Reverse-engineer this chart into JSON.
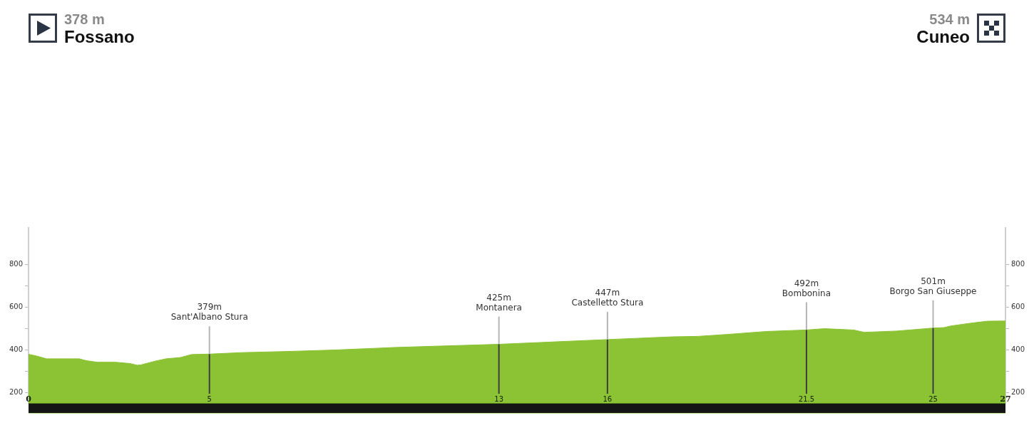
{
  "chart_data": {
    "type": "area",
    "annotations": [
      "378 m",
      "Fossano",
      "534 m",
      "Cuneo"
    ],
    "x": [
      0,
      0.2,
      0.5,
      1.4,
      1.6,
      1.9,
      2.4,
      2.8,
      3.0,
      3.1,
      3.5,
      3.8,
      4.2,
      4.5,
      4.7,
      5,
      5.9,
      7.3,
      8.6,
      10.1,
      13,
      16,
      17.8,
      18.5,
      19.3,
      20.4,
      21.5,
      22,
      22.8,
      23.1,
      24,
      25,
      25.3,
      25.5,
      26.1,
      26.5,
      27
    ],
    "series": [
      {
        "color": "#8cc334",
        "values": [
          378,
          371,
          357,
          357,
          348,
          341,
          341,
          335,
          327,
          328,
          346,
          357,
          363,
          377,
          378,
          379,
          386,
          392,
          399,
          410,
          425,
          447,
          460,
          462,
          471,
          485,
          492,
          498,
          492,
          481,
          487,
          501,
          503,
          511,
          525,
          533,
          534
        ]
      }
    ],
    "xlim": [
      0,
      27
    ],
    "xticks": [
      0,
      5,
      13,
      16,
      21.5,
      25,
      27
    ],
    "ylim": [
      150,
      970
    ],
    "yticks": [
      200,
      {
        "value": 300,
        "label": null
      },
      400,
      {
        "value": 500,
        "label": null
      },
      600,
      {
        "value": 700,
        "label": null
      },
      800
    ],
    "y2lim": [
      150,
      970
    ],
    "y2ticks": [
      200,
      {
        "value": 300,
        "label": null
      },
      400,
      {
        "value": 500,
        "label": null
      },
      600,
      {
        "value": 700,
        "label": null
      },
      800
    ],
    "ref_lines": [
      {
        "axis": "x",
        "value": 5,
        "label": "379m\nSant'Albano Stura",
        "color": "#3d3d3d"
      },
      {
        "axis": "x",
        "value": 13,
        "label": "425m\nMontanera",
        "color": "#3d3d3d"
      },
      {
        "axis": "x",
        "value": 16,
        "label": "447m\nCastelletto Stura",
        "color": "#3d3d3d"
      },
      {
        "axis": "x",
        "value": 21.5,
        "label": "492m\nBombonina",
        "color": "#3d3d3d"
      },
      {
        "axis": "x",
        "value": 25,
        "label": "501m\nBorgo San Giuseppe",
        "color": "#3d3d3d"
      }
    ],
    "marker": "none"
  }
}
